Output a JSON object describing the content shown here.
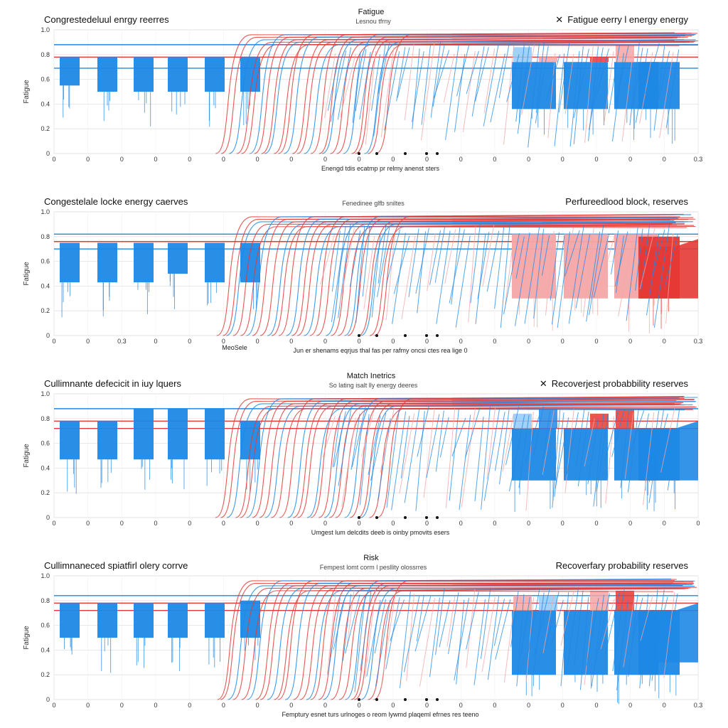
{
  "colors": {
    "blue": "#1e88e5",
    "blue_light": "#90caf9",
    "red": "#e53935",
    "red_light": "#f4a6a6",
    "grid": "#e0e0e0",
    "axis": "#999999"
  },
  "chart_data": [
    {
      "type": "bar",
      "title_left": "Congrestedeluul enrgy reerres",
      "title_center": "Fatigue",
      "subtitle_center": "Lesnou tfrny",
      "title_right": "Fatigue eerry l energy energy",
      "legend_marker": "✕",
      "xlabel": "Enengd tdis ecatmp pr relmy anenst sters",
      "ylabel": "Fatigue",
      "y_ticks": [
        "1.0",
        "0.8",
        "0.6",
        "0.4",
        "0.2",
        "0"
      ],
      "x_ticks": [
        "0",
        "0",
        "0",
        "0",
        "0",
        "0",
        "0",
        "0",
        "0",
        "0",
        "0",
        "0",
        "0",
        "0",
        "0",
        "0",
        "0",
        "0",
        "0",
        "0.3"
      ],
      "ylim": [
        0,
        1
      ],
      "bars": [
        {
          "c": "blue",
          "top": 0.78,
          "bottom": 0.55
        },
        {
          "c": "blue",
          "top": 0.78,
          "bottom": 0.5
        },
        {
          "c": "blue",
          "top": 0.78,
          "bottom": 0.5
        },
        {
          "c": "blue",
          "top": 0.78,
          "bottom": 0.5
        },
        {
          "c": "blue",
          "top": 0.78,
          "bottom": 0.5
        },
        {
          "c": "blue",
          "top": 0.78,
          "bottom": 0.5
        },
        {
          "c": "blue",
          "top": 0.74,
          "bottom": 0.36
        },
        {
          "c": "blue",
          "top": 0.74,
          "bottom": 0.36
        },
        {
          "c": "blue",
          "top": 0.74,
          "bottom": 0.36
        },
        {
          "c": "blue",
          "top": 0.74,
          "bottom": 0.36
        }
      ],
      "caps": [
        {
          "c": "blue_light",
          "top": 0.86,
          "bottom": 0.74
        },
        {
          "c": "red_light",
          "top": 0.78,
          "bottom": 0.74
        },
        {
          "c": "red",
          "top": 0.78,
          "bottom": 0.74
        },
        {
          "c": "red_light",
          "top": 0.88,
          "bottom": 0.74
        }
      ],
      "hlines": [
        {
          "c": "red",
          "y": 0.78
        },
        {
          "c": "blue",
          "y": 0.69
        },
        {
          "c": "blue",
          "y": 0.88
        }
      ],
      "curve_start": 0.0,
      "curve_end": 0.97,
      "fill_right": false
    },
    {
      "type": "bar",
      "title_left": "Congestelale locke energy caerves",
      "title_center": "",
      "subtitle_center": "Fenedinee glfb sniltes",
      "title_right": "Perfureedlood block, reserves",
      "legend_marker": "",
      "xlabel": "Jun er shenams eqrjus thal fas per rafmy oncsi ctes rea lige 0",
      "ylabel": "Fatigue",
      "y_ticks": [
        "1.0",
        "0.8",
        "0.6",
        "0.4",
        "0.2",
        "0"
      ],
      "x_ticks": [
        "0",
        "0",
        "0.3",
        "0",
        "0",
        "0",
        "0",
        "0",
        "0",
        "0",
        "0",
        "0",
        "0",
        "0",
        "0",
        "0",
        "0",
        "0",
        "0",
        "0.3"
      ],
      "extra_label": "MeoSele",
      "ylim": [
        0,
        1
      ],
      "bars": [
        {
          "c": "blue",
          "top": 0.75,
          "bottom": 0.43
        },
        {
          "c": "blue",
          "top": 0.75,
          "bottom": 0.43
        },
        {
          "c": "blue",
          "top": 0.75,
          "bottom": 0.43
        },
        {
          "c": "blue",
          "top": 0.75,
          "bottom": 0.5
        },
        {
          "c": "blue",
          "top": 0.75,
          "bottom": 0.43
        },
        {
          "c": "blue",
          "top": 0.75,
          "bottom": 0.43
        },
        {
          "c": "red_light",
          "top": 0.82,
          "bottom": 0.3
        },
        {
          "c": "red_light",
          "top": 0.82,
          "bottom": 0.3
        },
        {
          "c": "red_light",
          "top": 0.82,
          "bottom": 0.3
        },
        {
          "c": "red",
          "top": 0.8,
          "bottom": 0.3
        }
      ],
      "caps": [],
      "hlines": [
        {
          "c": "red",
          "y": 0.76
        },
        {
          "c": "blue",
          "y": 0.7
        },
        {
          "c": "blue",
          "y": 0.82
        }
      ],
      "curve_start": 0.0,
      "curve_end": 0.97,
      "fill_right": true
    },
    {
      "type": "bar",
      "title_left": "Cullimnante defecicit in iuy lquers",
      "title_center": "Match Inetrics",
      "subtitle_center": "So lating isalt lly energy deeres",
      "title_right": "Recoverjest probabbility reserves",
      "legend_marker": "✕",
      "xlabel": "Umgest lum delcdits deeb is oinby pmovits esers",
      "ylabel": "Fatigue",
      "y_ticks": [
        "1.0",
        "0.8",
        "0.6",
        "0.4",
        "0.2",
        "0"
      ],
      "x_ticks": [
        "0",
        "0",
        "0",
        "0",
        "0",
        "0",
        "0",
        "0",
        "0",
        "0",
        "0",
        "0",
        "0",
        "0",
        "0",
        "0",
        "0",
        "0",
        "0",
        "0"
      ],
      "ylim": [
        0,
        1
      ],
      "bars": [
        {
          "c": "blue",
          "top": 0.78,
          "bottom": 0.47
        },
        {
          "c": "blue",
          "top": 0.78,
          "bottom": 0.47
        },
        {
          "c": "blue",
          "top": 0.88,
          "bottom": 0.47
        },
        {
          "c": "blue",
          "top": 0.88,
          "bottom": 0.47
        },
        {
          "c": "blue",
          "top": 0.88,
          "bottom": 0.47
        },
        {
          "c": "blue",
          "top": 0.78,
          "bottom": 0.47
        },
        {
          "c": "blue",
          "top": 0.72,
          "bottom": 0.3
        },
        {
          "c": "blue",
          "top": 0.72,
          "bottom": 0.3
        },
        {
          "c": "blue",
          "top": 0.72,
          "bottom": 0.3
        },
        {
          "c": "blue",
          "top": 0.72,
          "bottom": 0.3
        }
      ],
      "caps": [
        {
          "c": "blue_light",
          "top": 0.84,
          "bottom": 0.72
        },
        {
          "c": "blue",
          "top": 0.88,
          "bottom": 0.72
        },
        {
          "c": "red",
          "top": 0.84,
          "bottom": 0.72
        },
        {
          "c": "red",
          "top": 0.88,
          "bottom": 0.72
        }
      ],
      "hlines": [
        {
          "c": "red",
          "y": 0.78
        },
        {
          "c": "red",
          "y": 0.72
        },
        {
          "c": "blue",
          "y": 0.88
        }
      ],
      "curve_start": 0.0,
      "curve_end": 0.97,
      "fill_right": true
    },
    {
      "type": "bar",
      "title_left": "Cullimnaneced spiatfirl olery corrve",
      "title_center": "Risk",
      "subtitle_center": "Fempest lomt corm l pesllity olossrres",
      "title_right": "Recoverfary probability reserves",
      "legend_marker": "",
      "xlabel": "Femptury esnet turs urlnoges o reom lywmd plaqeml efrnes res teeno",
      "ylabel": "Fatigue",
      "y_ticks": [
        "1.0",
        "0.8",
        "0.6",
        "0.4",
        "0.2",
        "0"
      ],
      "x_ticks": [
        "0",
        "0",
        "0",
        "0",
        "0",
        "0",
        "0",
        "0",
        "0",
        "0",
        "0",
        "0",
        "0",
        "0",
        "0",
        "0",
        "0",
        "0",
        "0",
        "0.3"
      ],
      "ylim": [
        0,
        1
      ],
      "bars": [
        {
          "c": "blue",
          "top": 0.78,
          "bottom": 0.5
        },
        {
          "c": "blue",
          "top": 0.78,
          "bottom": 0.5
        },
        {
          "c": "blue",
          "top": 0.78,
          "bottom": 0.5
        },
        {
          "c": "blue",
          "top": 0.78,
          "bottom": 0.5
        },
        {
          "c": "blue",
          "top": 0.78,
          "bottom": 0.5
        },
        {
          "c": "blue",
          "top": 0.8,
          "bottom": 0.5
        },
        {
          "c": "blue",
          "top": 0.72,
          "bottom": 0.2
        },
        {
          "c": "blue",
          "top": 0.72,
          "bottom": 0.2
        },
        {
          "c": "blue",
          "top": 0.72,
          "bottom": 0.2
        },
        {
          "c": "blue",
          "top": 0.72,
          "bottom": 0.2
        }
      ],
      "caps": [
        {
          "c": "red_light",
          "top": 0.84,
          "bottom": 0.72
        },
        {
          "c": "blue_light",
          "top": 0.84,
          "bottom": 0.72
        },
        {
          "c": "red_light",
          "top": 0.88,
          "bottom": 0.72
        },
        {
          "c": "red",
          "top": 0.88,
          "bottom": 0.72
        }
      ],
      "hlines": [
        {
          "c": "red",
          "y": 0.78
        },
        {
          "c": "red",
          "y": 0.72
        },
        {
          "c": "blue",
          "y": 0.84
        }
      ],
      "curve_start": 0.0,
      "curve_end": 0.97,
      "fill_right": true
    }
  ]
}
